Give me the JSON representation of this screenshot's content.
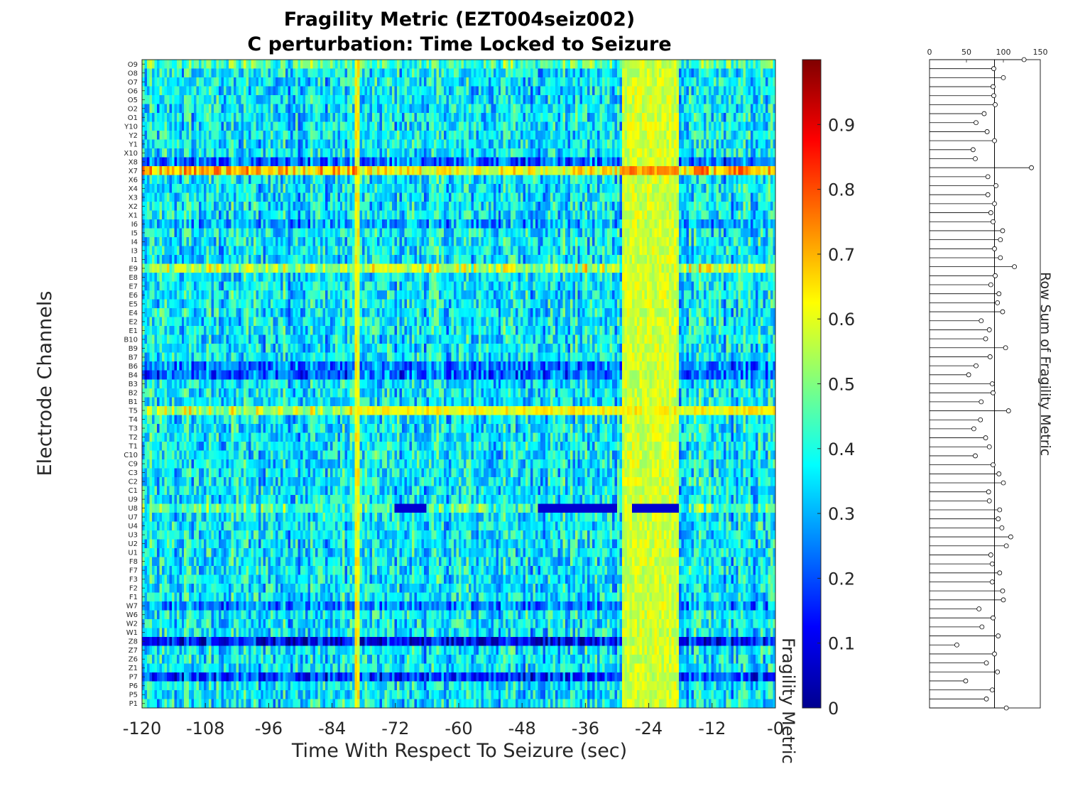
{
  "chart_data": [
    {
      "type": "heatmap",
      "title": [
        "Fragility Metric (EZT004seiz002)",
        "C perturbation:  Time Locked to Seizure"
      ],
      "xlabel": "Time With Respect To Seizure (sec)",
      "ylabel": "Electrode Channels",
      "xlim": [
        -120,
        0
      ],
      "xticks": [
        -120,
        -108,
        -96,
        -84,
        -72,
        -60,
        -48,
        -36,
        -24,
        -12,
        0
      ],
      "xtick_labels": [
        "-120",
        "-108",
        "-96",
        "-84",
        "-72",
        "-60",
        "-48",
        "-36",
        "-24",
        "-12",
        "-0"
      ],
      "channels": [
        "O9",
        "O8",
        "O7",
        "O6",
        "O5",
        "O2",
        "O1",
        "Y10",
        "Y2",
        "Y1",
        "X10",
        "X8",
        "X7",
        "X6",
        "X4",
        "X3",
        "X2",
        "X1",
        "I6",
        "I5",
        "I4",
        "I3",
        "I1",
        "E9",
        "E8",
        "E7",
        "E6",
        "E5",
        "E4",
        "E2",
        "E1",
        "B10",
        "B9",
        "B7",
        "B6",
        "B4",
        "B3",
        "B2",
        "B1",
        "T5",
        "T4",
        "T3",
        "T2",
        "T1",
        "C10",
        "C9",
        "C3",
        "C2",
        "C1",
        "U9",
        "U8",
        "U7",
        "U4",
        "U3",
        "U2",
        "U1",
        "F8",
        "F7",
        "F3",
        "F2",
        "F1",
        "W7",
        "W6",
        "W2",
        "W1",
        "Z8",
        "Z7",
        "Z6",
        "Z1",
        "P7",
        "P6",
        "P5",
        "P1"
      ],
      "colormap": "jet",
      "clim": [
        0,
        1
      ],
      "colorbar_label": "Fragility Metric",
      "colorbar_ticks": [
        0,
        0.1,
        0.2,
        0.3,
        0.4,
        0.5,
        0.6,
        0.7,
        0.8,
        0.9
      ],
      "colorbar_tick_labels": [
        "0",
        "0.1",
        "0.2",
        "0.3",
        "0.4",
        "0.5",
        "0.6",
        "0.7",
        "0.8",
        "0.9"
      ],
      "time_bins": 256,
      "global_features": [
        {
          "t_start": -79.6,
          "t_end": -78.8,
          "value": 0.62
        },
        {
          "t_start": -29,
          "t_end": -18.5,
          "value": 0.58
        }
      ],
      "channel_baseline": {
        "O9": 0.45,
        "X8": 0.22,
        "X7": 0.68,
        "I6": 0.3,
        "E9": 0.55,
        "B4": 0.22,
        "B6": 0.25,
        "T5": 0.55,
        "U8": 0.45,
        "Z8": 0.12,
        "P7": 0.18,
        "W7": 0.25,
        "default": 0.36
      }
    },
    {
      "type": "stem",
      "ylabel": "Row Sum of Fragility Metric",
      "xlim": [
        0,
        150
      ],
      "xticks": [
        0,
        50,
        100,
        150
      ],
      "xtick_labels": [
        "0",
        "50",
        "100",
        "150"
      ],
      "baseline": 88,
      "values": [
        128,
        87,
        100,
        86,
        87,
        89,
        74,
        63,
        78,
        88,
        59,
        62,
        138,
        79,
        90,
        79,
        88,
        83,
        86,
        99,
        96,
        88,
        96,
        115,
        89,
        83,
        94,
        92,
        99,
        70,
        81,
        76,
        103,
        82,
        63,
        53,
        85,
        86,
        70,
        107,
        69,
        60,
        76,
        81,
        62,
        86,
        94,
        100,
        80,
        81,
        95,
        93,
        98,
        110,
        104,
        83,
        85,
        95,
        85,
        99,
        100,
        67,
        86,
        71,
        93,
        37,
        88,
        77,
        92,
        49,
        85,
        77,
        104
      ]
    }
  ]
}
